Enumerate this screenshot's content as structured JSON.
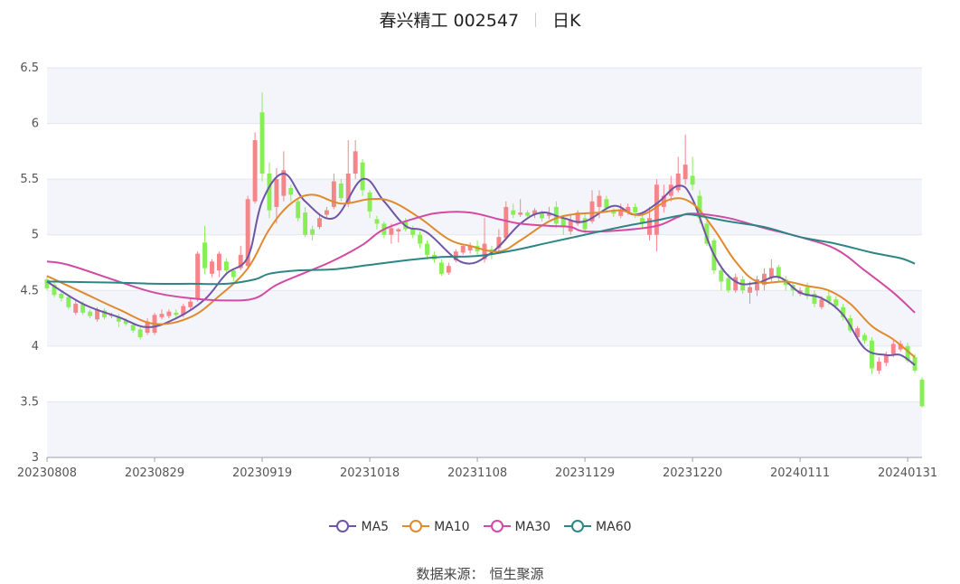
{
  "header": {
    "name": "春兴精工 002547",
    "period": "日K"
  },
  "source": {
    "label": "数据来源：",
    "value": "恒生聚源"
  },
  "colors": {
    "up": "#f4868a",
    "down": "#88ee55",
    "band": "#f4f5fa",
    "grid": "#e4e6ef",
    "MA5": "#6f55a6",
    "MA10": "#e08a2e",
    "MA30": "#d24aa3",
    "MA60": "#2e8585"
  },
  "chart_data": {
    "type": "candlestick",
    "ylim": [
      3,
      6.5
    ],
    "yticks": [
      "3",
      "3.5",
      "4",
      "4.5",
      "5",
      "5.5",
      "6",
      "6.5"
    ],
    "xticks": [
      "20230808",
      "20230829",
      "20230919",
      "20231018",
      "20231108",
      "20231129",
      "20231220",
      "20240111",
      "20240131"
    ],
    "xtick_index": [
      0,
      15,
      30,
      45,
      60,
      75,
      90,
      105,
      120
    ],
    "candles": [
      {
        "o": 4.6,
        "c": 4.52,
        "h": 4.63,
        "l": 4.5
      },
      {
        "o": 4.55,
        "c": 4.46,
        "h": 4.58,
        "l": 4.44
      },
      {
        "o": 4.47,
        "c": 4.43,
        "h": 4.5,
        "l": 4.4
      },
      {
        "o": 4.44,
        "c": 4.35,
        "h": 4.46,
        "l": 4.33
      },
      {
        "o": 4.3,
        "c": 4.38,
        "h": 4.41,
        "l": 4.28
      },
      {
        "o": 4.38,
        "c": 4.3,
        "h": 4.4,
        "l": 4.28
      },
      {
        "o": 4.31,
        "c": 4.27,
        "h": 4.33,
        "l": 4.25
      },
      {
        "o": 4.24,
        "c": 4.33,
        "h": 4.35,
        "l": 4.22
      },
      {
        "o": 4.32,
        "c": 4.26,
        "h": 4.34,
        "l": 4.24
      },
      {
        "o": 4.27,
        "c": 4.28,
        "h": 4.3,
        "l": 4.25
      },
      {
        "o": 4.26,
        "c": 4.22,
        "h": 4.29,
        "l": 4.17
      },
      {
        "o": 4.23,
        "c": 4.2,
        "h": 4.25,
        "l": 4.18
      },
      {
        "o": 4.19,
        "c": 4.14,
        "h": 4.21,
        "l": 4.12
      },
      {
        "o": 4.15,
        "c": 4.08,
        "h": 4.17,
        "l": 4.06
      },
      {
        "o": 4.12,
        "c": 4.22,
        "h": 4.25,
        "l": 4.1
      },
      {
        "o": 4.12,
        "c": 4.28,
        "h": 4.3,
        "l": 4.1
      },
      {
        "o": 4.26,
        "c": 4.29,
        "h": 4.33,
        "l": 4.24
      },
      {
        "o": 4.27,
        "c": 4.31,
        "h": 4.33,
        "l": 4.25
      },
      {
        "o": 4.3,
        "c": 4.28,
        "h": 4.33,
        "l": 4.26
      },
      {
        "o": 4.28,
        "c": 4.36,
        "h": 4.38,
        "l": 4.26
      },
      {
        "o": 4.35,
        "c": 4.4,
        "h": 4.43,
        "l": 4.32
      },
      {
        "o": 4.43,
        "c": 4.83,
        "h": 4.85,
        "l": 4.4
      },
      {
        "o": 4.93,
        "c": 4.7,
        "h": 5.08,
        "l": 4.65
      },
      {
        "o": 4.65,
        "c": 4.76,
        "h": 4.78,
        "l": 4.62
      },
      {
        "o": 4.68,
        "c": 4.83,
        "h": 4.85,
        "l": 4.62
      },
      {
        "o": 4.76,
        "c": 4.68,
        "h": 4.79,
        "l": 4.66
      },
      {
        "o": 4.68,
        "c": 4.62,
        "h": 4.7,
        "l": 4.58
      },
      {
        "o": 4.7,
        "c": 4.82,
        "h": 4.9,
        "l": 4.68
      },
      {
        "o": 4.72,
        "c": 5.32,
        "h": 5.35,
        "l": 4.7
      },
      {
        "o": 5.3,
        "c": 5.85,
        "h": 5.92,
        "l": 5.28
      },
      {
        "o": 6.1,
        "c": 5.55,
        "h": 6.28,
        "l": 5.48
      },
      {
        "o": 5.55,
        "c": 5.22,
        "h": 5.65,
        "l": 5.15
      },
      {
        "o": 5.25,
        "c": 5.5,
        "h": 5.6,
        "l": 5.1
      },
      {
        "o": 5.35,
        "c": 5.58,
        "h": 5.75,
        "l": 5.3
      },
      {
        "o": 5.42,
        "c": 5.36,
        "h": 5.45,
        "l": 5.3
      },
      {
        "o": 5.3,
        "c": 5.15,
        "h": 5.33,
        "l": 5.12
      },
      {
        "o": 5.2,
        "c": 5.0,
        "h": 5.25,
        "l": 4.98
      },
      {
        "o": 5.05,
        "c": 5.0,
        "h": 5.08,
        "l": 4.95
      },
      {
        "o": 5.07,
        "c": 5.15,
        "h": 5.18,
        "l": 5.05
      },
      {
        "o": 5.18,
        "c": 5.22,
        "h": 5.25,
        "l": 5.15
      },
      {
        "o": 5.25,
        "c": 5.48,
        "h": 5.55,
        "l": 5.23
      },
      {
        "o": 5.46,
        "c": 5.33,
        "h": 5.5,
        "l": 5.3
      },
      {
        "o": 5.28,
        "c": 5.55,
        "h": 5.85,
        "l": 5.25
      },
      {
        "o": 5.55,
        "c": 5.75,
        "h": 5.85,
        "l": 5.5
      },
      {
        "o": 5.65,
        "c": 5.4,
        "h": 5.68,
        "l": 5.35
      },
      {
        "o": 5.38,
        "c": 5.21,
        "h": 5.4,
        "l": 5.15
      },
      {
        "o": 5.14,
        "c": 5.1,
        "h": 5.17,
        "l": 5.05
      },
      {
        "o": 5.1,
        "c": 5.0,
        "h": 5.12,
        "l": 4.97
      },
      {
        "o": 5.0,
        "c": 5.06,
        "h": 5.1,
        "l": 4.92
      },
      {
        "o": 5.03,
        "c": 5.05,
        "h": 5.06,
        "l": 4.93
      },
      {
        "o": 5.12,
        "c": 5.05,
        "h": 5.15,
        "l": 5.03
      },
      {
        "o": 5.05,
        "c": 5.0,
        "h": 5.08,
        "l": 4.97
      },
      {
        "o": 5.0,
        "c": 4.92,
        "h": 5.03,
        "l": 4.88
      },
      {
        "o": 4.92,
        "c": 4.82,
        "h": 4.95,
        "l": 4.78
      },
      {
        "o": 4.82,
        "c": 4.78,
        "h": 4.85,
        "l": 4.75
      },
      {
        "o": 4.75,
        "c": 4.65,
        "h": 4.78,
        "l": 4.63
      },
      {
        "o": 4.66,
        "c": 4.72,
        "h": 4.75,
        "l": 4.64
      },
      {
        "o": 4.77,
        "c": 4.85,
        "h": 4.87,
        "l": 4.75
      },
      {
        "o": 4.84,
        "c": 4.9,
        "h": 4.92,
        "l": 4.82
      },
      {
        "o": 4.86,
        "c": 4.9,
        "h": 4.93,
        "l": 4.83
      },
      {
        "o": 4.9,
        "c": 4.85,
        "h": 4.95,
        "l": 4.82
      },
      {
        "o": 4.78,
        "c": 4.92,
        "h": 5.15,
        "l": 4.75
      },
      {
        "o": 4.87,
        "c": 4.85,
        "h": 4.9,
        "l": 4.78
      },
      {
        "o": 4.88,
        "c": 4.98,
        "h": 5.05,
        "l": 4.85
      },
      {
        "o": 4.97,
        "c": 5.25,
        "h": 5.3,
        "l": 4.95
      },
      {
        "o": 5.22,
        "c": 5.18,
        "h": 5.28,
        "l": 5.15
      },
      {
        "o": 5.18,
        "c": 5.2,
        "h": 5.32,
        "l": 5.16
      },
      {
        "o": 5.2,
        "c": 5.17,
        "h": 5.22,
        "l": 5.14
      },
      {
        "o": 5.18,
        "c": 5.22,
        "h": 5.24,
        "l": 5.15
      },
      {
        "o": 5.2,
        "c": 5.15,
        "h": 5.22,
        "l": 5.12
      },
      {
        "o": 5.17,
        "c": 5.19,
        "h": 5.25,
        "l": 5.14
      },
      {
        "o": 5.25,
        "c": 5.1,
        "h": 5.3,
        "l": 5.06
      },
      {
        "o": 5.15,
        "c": 5.07,
        "h": 5.18,
        "l": 5.0
      },
      {
        "o": 5.03,
        "c": 5.13,
        "h": 5.18,
        "l": 5.0
      },
      {
        "o": 5.1,
        "c": 5.2,
        "h": 5.22,
        "l": 5.08
      },
      {
        "o": 5.15,
        "c": 5.05,
        "h": 5.2,
        "l": 5.0
      },
      {
        "o": 5.12,
        "c": 5.3,
        "h": 5.4,
        "l": 5.1
      },
      {
        "o": 5.25,
        "c": 5.35,
        "h": 5.4,
        "l": 5.15
      },
      {
        "o": 5.32,
        "c": 5.24,
        "h": 5.35,
        "l": 5.2
      },
      {
        "o": 5.21,
        "c": 5.19,
        "h": 5.24,
        "l": 5.16
      },
      {
        "o": 5.17,
        "c": 5.23,
        "h": 5.28,
        "l": 5.15
      },
      {
        "o": 5.2,
        "c": 5.25,
        "h": 5.28,
        "l": 5.18
      },
      {
        "o": 5.25,
        "c": 5.2,
        "h": 5.28,
        "l": 5.15
      },
      {
        "o": 5.15,
        "c": 5.1,
        "h": 5.2,
        "l": 5.05
      },
      {
        "o": 5.0,
        "c": 5.15,
        "h": 5.25,
        "l": 4.95
      },
      {
        "o": 5.0,
        "c": 5.45,
        "h": 5.5,
        "l": 4.85
      },
      {
        "o": 5.25,
        "c": 5.35,
        "h": 5.45,
        "l": 5.2
      },
      {
        "o": 5.35,
        "c": 5.45,
        "h": 5.53,
        "l": 5.3
      },
      {
        "o": 5.4,
        "c": 5.55,
        "h": 5.7,
        "l": 5.38
      },
      {
        "o": 5.5,
        "c": 5.63,
        "h": 5.9,
        "l": 5.45
      },
      {
        "o": 5.53,
        "c": 5.45,
        "h": 5.7,
        "l": 5.4
      },
      {
        "o": 5.35,
        "c": 5.15,
        "h": 5.4,
        "l": 5.1
      },
      {
        "o": 5.1,
        "c": 4.92,
        "h": 5.12,
        "l": 4.9
      },
      {
        "o": 4.95,
        "c": 4.68,
        "h": 4.97,
        "l": 4.65
      },
      {
        "o": 4.68,
        "c": 4.58,
        "h": 4.7,
        "l": 4.5
      },
      {
        "o": 4.61,
        "c": 4.5,
        "h": 4.65,
        "l": 4.48
      },
      {
        "o": 4.5,
        "c": 4.62,
        "h": 4.65,
        "l": 4.48
      },
      {
        "o": 4.6,
        "c": 4.5,
        "h": 4.63,
        "l": 4.47
      },
      {
        "o": 4.48,
        "c": 4.53,
        "h": 4.58,
        "l": 4.38
      },
      {
        "o": 4.5,
        "c": 4.6,
        "h": 4.63,
        "l": 4.45
      },
      {
        "o": 4.55,
        "c": 4.65,
        "h": 4.7,
        "l": 4.5
      },
      {
        "o": 4.62,
        "c": 4.7,
        "h": 4.78,
        "l": 4.58
      },
      {
        "o": 4.71,
        "c": 4.62,
        "h": 4.73,
        "l": 4.58
      },
      {
        "o": 4.6,
        "c": 4.55,
        "h": 4.63,
        "l": 4.5
      },
      {
        "o": 4.55,
        "c": 4.5,
        "h": 4.58,
        "l": 4.45
      },
      {
        "o": 4.47,
        "c": 4.5,
        "h": 4.53,
        "l": 4.45
      },
      {
        "o": 4.53,
        "c": 4.45,
        "h": 4.57,
        "l": 4.42
      },
      {
        "o": 4.47,
        "c": 4.38,
        "h": 4.5,
        "l": 4.35
      },
      {
        "o": 4.35,
        "c": 4.42,
        "h": 4.45,
        "l": 4.33
      },
      {
        "o": 4.45,
        "c": 4.4,
        "h": 4.5,
        "l": 4.37
      },
      {
        "o": 4.42,
        "c": 4.36,
        "h": 4.45,
        "l": 4.33
      },
      {
        "o": 4.35,
        "c": 4.26,
        "h": 4.38,
        "l": 4.23
      },
      {
        "o": 4.25,
        "c": 4.14,
        "h": 4.28,
        "l": 4.12
      },
      {
        "o": 4.08,
        "c": 4.16,
        "h": 4.18,
        "l": 4.06
      },
      {
        "o": 4.1,
        "c": 4.05,
        "h": 4.12,
        "l": 4.02
      },
      {
        "o": 4.05,
        "c": 3.8,
        "h": 4.08,
        "l": 3.75
      },
      {
        "o": 3.78,
        "c": 3.86,
        "h": 3.9,
        "l": 3.75
      },
      {
        "o": 3.85,
        "c": 3.92,
        "h": 3.95,
        "l": 3.82
      },
      {
        "o": 3.93,
        "c": 4.02,
        "h": 4.05,
        "l": 3.9
      },
      {
        "o": 3.97,
        "c": 4.02,
        "h": 4.05,
        "l": 3.95
      },
      {
        "o": 4.0,
        "c": 3.87,
        "h": 4.03,
        "l": 3.85
      },
      {
        "o": 3.9,
        "c": 3.78,
        "h": 3.93,
        "l": 3.76
      },
      {
        "o": 3.7,
        "c": 3.46,
        "h": 3.72,
        "l": 3.45
      }
    ],
    "series": [
      {
        "name": "MA5",
        "points": [
          [
            0,
            4.58
          ],
          [
            5,
            4.38
          ],
          [
            10,
            4.26
          ],
          [
            14,
            4.17
          ],
          [
            18,
            4.25
          ],
          [
            22,
            4.42
          ],
          [
            25,
            4.65
          ],
          [
            28,
            4.8
          ],
          [
            30,
            5.3
          ],
          [
            33,
            5.55
          ],
          [
            36,
            5.3
          ],
          [
            40,
            5.15
          ],
          [
            44,
            5.5
          ],
          [
            47,
            5.3
          ],
          [
            50,
            5.08
          ],
          [
            53,
            5.02
          ],
          [
            58,
            4.75
          ],
          [
            62,
            4.84
          ],
          [
            66,
            5.1
          ],
          [
            69,
            5.2
          ],
          [
            72,
            5.15
          ],
          [
            75,
            5.12
          ],
          [
            79,
            5.26
          ],
          [
            82,
            5.18
          ],
          [
            85,
            5.28
          ],
          [
            88,
            5.44
          ],
          [
            90,
            5.32
          ],
          [
            93,
            4.82
          ],
          [
            96,
            4.58
          ],
          [
            99,
            4.57
          ],
          [
            102,
            4.62
          ],
          [
            105,
            4.48
          ],
          [
            108,
            4.43
          ],
          [
            111,
            4.28
          ],
          [
            114,
            3.98
          ],
          [
            117,
            3.92
          ],
          [
            119,
            3.92
          ],
          [
            121,
            3.83
          ]
        ]
      },
      {
        "name": "MA10",
        "points": [
          [
            0,
            4.63
          ],
          [
            5,
            4.48
          ],
          [
            10,
            4.33
          ],
          [
            15,
            4.2
          ],
          [
            20,
            4.26
          ],
          [
            24,
            4.45
          ],
          [
            28,
            4.7
          ],
          [
            31,
            5.05
          ],
          [
            34,
            5.28
          ],
          [
            37,
            5.36
          ],
          [
            41,
            5.28
          ],
          [
            45,
            5.32
          ],
          [
            48,
            5.3
          ],
          [
            52,
            5.15
          ],
          [
            56,
            4.96
          ],
          [
            59,
            4.9
          ],
          [
            63,
            4.85
          ],
          [
            66,
            4.95
          ],
          [
            70,
            5.12
          ],
          [
            73,
            5.18
          ],
          [
            77,
            5.2
          ],
          [
            80,
            5.22
          ],
          [
            83,
            5.18
          ],
          [
            87,
            5.32
          ],
          [
            90,
            5.28
          ],
          [
            93,
            5.05
          ],
          [
            96,
            4.76
          ],
          [
            99,
            4.58
          ],
          [
            103,
            4.58
          ],
          [
            106,
            4.54
          ],
          [
            109,
            4.5
          ],
          [
            112,
            4.38
          ],
          [
            115,
            4.18
          ],
          [
            118,
            4.06
          ],
          [
            121,
            3.9
          ]
        ]
      },
      {
        "name": "MA30",
        "points": [
          [
            0,
            4.76
          ],
          [
            3,
            4.73
          ],
          [
            10,
            4.58
          ],
          [
            15,
            4.48
          ],
          [
            20,
            4.43
          ],
          [
            25,
            4.41
          ],
          [
            29,
            4.43
          ],
          [
            32,
            4.55
          ],
          [
            36,
            4.66
          ],
          [
            40,
            4.77
          ],
          [
            44,
            4.91
          ],
          [
            47,
            5.05
          ],
          [
            52,
            5.16
          ],
          [
            55,
            5.2
          ],
          [
            59,
            5.2
          ],
          [
            63,
            5.14
          ],
          [
            66,
            5.1
          ],
          [
            70,
            5.08
          ],
          [
            73,
            5.07
          ],
          [
            75,
            5.03
          ],
          [
            80,
            5.04
          ],
          [
            85,
            5.08
          ],
          [
            88,
            5.16
          ],
          [
            90,
            5.19
          ],
          [
            95,
            5.15
          ],
          [
            100,
            5.06
          ],
          [
            105,
            4.98
          ],
          [
            110,
            4.87
          ],
          [
            114,
            4.68
          ],
          [
            118,
            4.48
          ],
          [
            121,
            4.3
          ]
        ]
      },
      {
        "name": "MA60",
        "points": [
          [
            0,
            4.58
          ],
          [
            10,
            4.57
          ],
          [
            15,
            4.56
          ],
          [
            20,
            4.56
          ],
          [
            25,
            4.56
          ],
          [
            29,
            4.6
          ],
          [
            31,
            4.65
          ],
          [
            35,
            4.68
          ],
          [
            40,
            4.69
          ],
          [
            45,
            4.73
          ],
          [
            50,
            4.77
          ],
          [
            55,
            4.8
          ],
          [
            60,
            4.81
          ],
          [
            65,
            4.86
          ],
          [
            70,
            4.93
          ],
          [
            75,
            5.0
          ],
          [
            80,
            5.07
          ],
          [
            85,
            5.13
          ],
          [
            88,
            5.17
          ],
          [
            90,
            5.18
          ],
          [
            95,
            5.12
          ],
          [
            100,
            5.07
          ],
          [
            105,
            4.98
          ],
          [
            110,
            4.92
          ],
          [
            115,
            4.84
          ],
          [
            119,
            4.79
          ],
          [
            121,
            4.74
          ]
        ]
      }
    ]
  }
}
